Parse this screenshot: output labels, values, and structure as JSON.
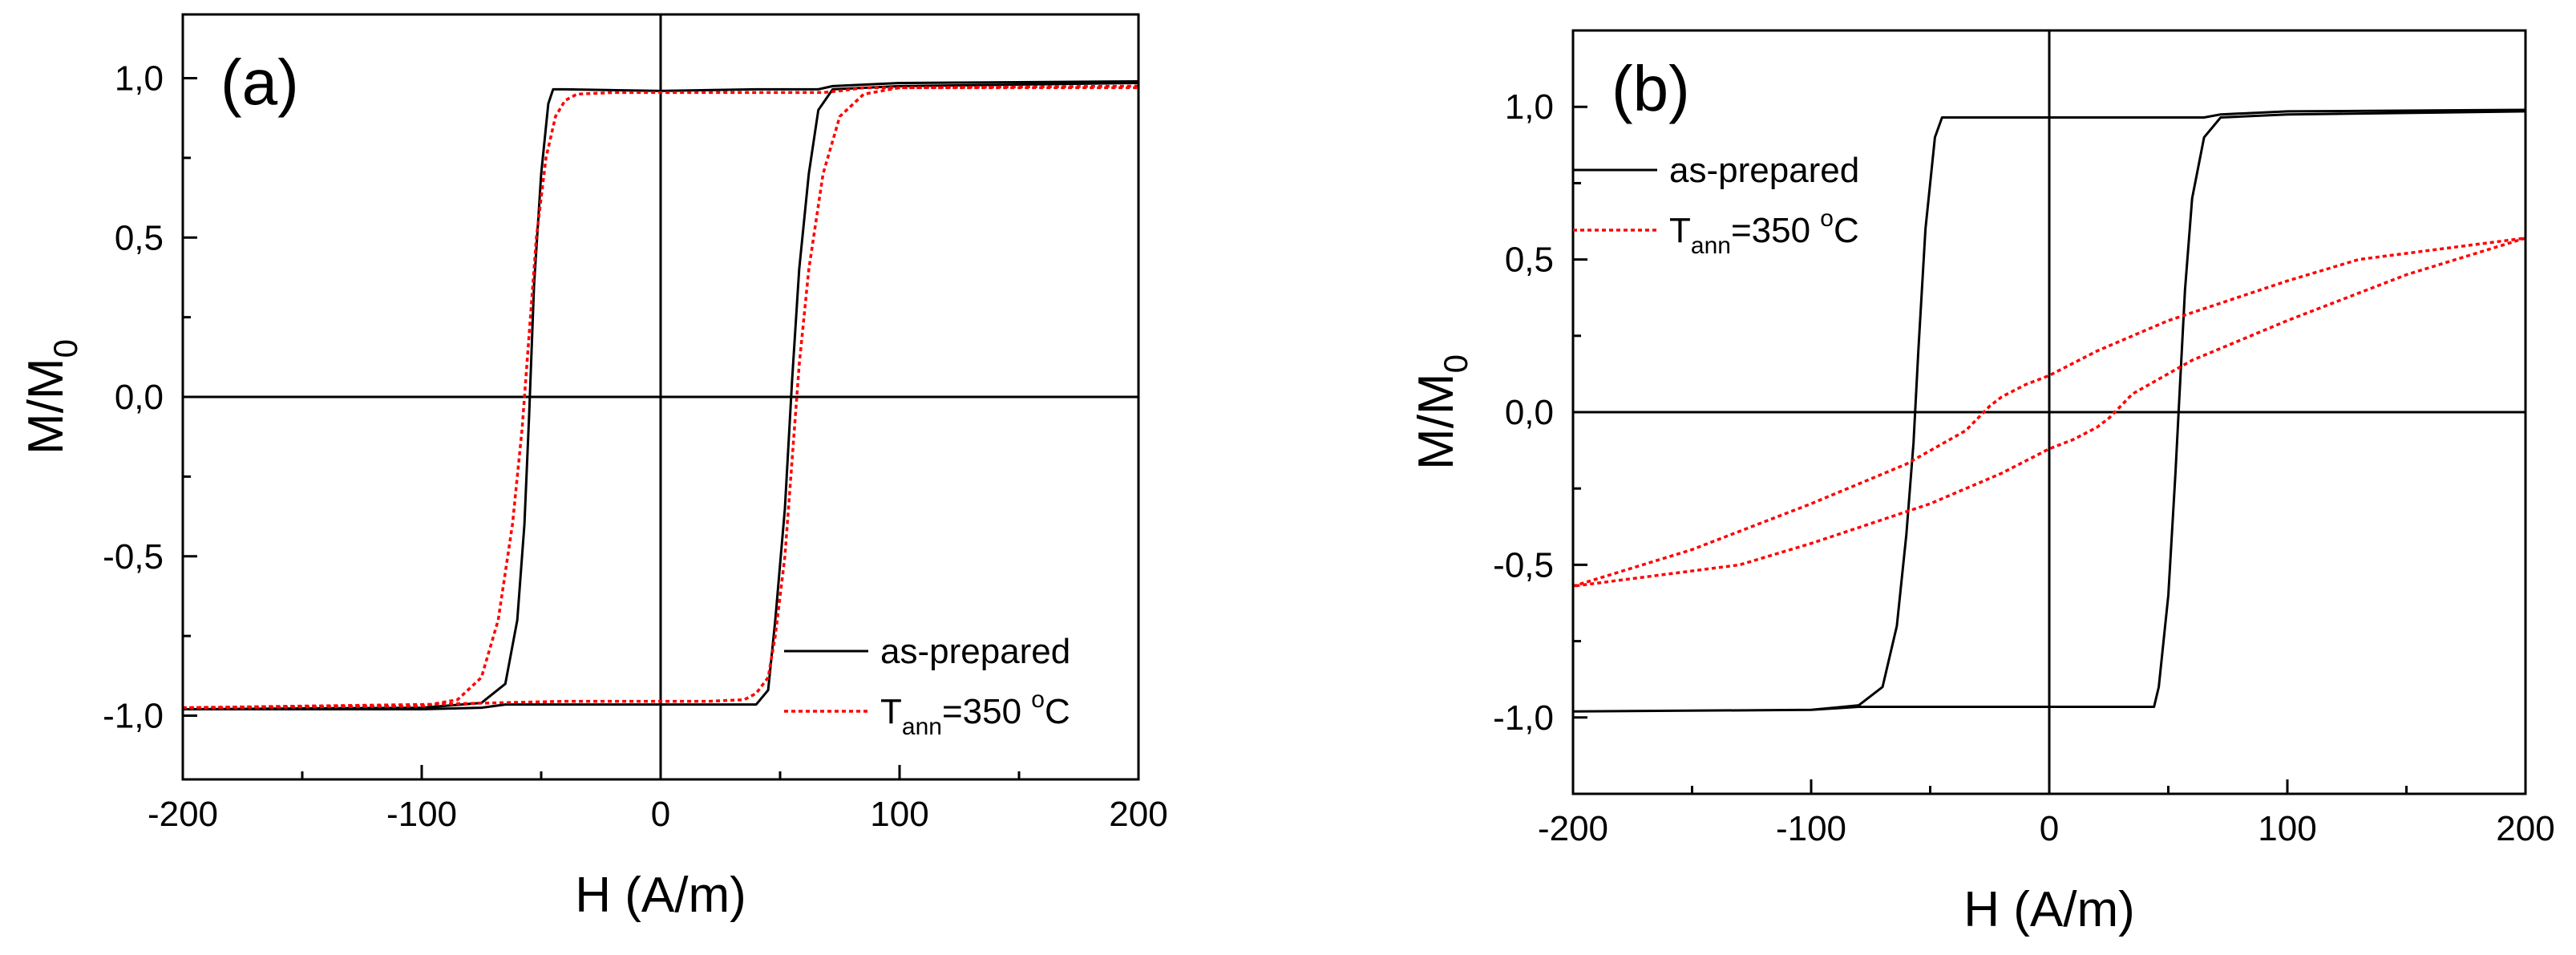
{
  "chart_data": [
    {
      "type": "line",
      "panel_label": "(a)",
      "xlabel": "H (A/m)",
      "ylabel_main": "M/M",
      "ylabel_sub": "0",
      "xlim": [
        -200,
        200
      ],
      "ylim": [
        -1.2,
        1.2
      ],
      "x_ticks": [
        -200,
        -100,
        0,
        100,
        200
      ],
      "x_tick_labels": [
        "-200",
        "-100",
        "0",
        "100",
        "200"
      ],
      "y_ticks": [
        -1.0,
        -0.5,
        0.0,
        0.5,
        1.0
      ],
      "y_tick_labels": [
        "-1,0",
        "-0,5",
        "0,0",
        "0,5",
        "1,0"
      ],
      "grid": false,
      "zero_lines": true,
      "legend": {
        "position": "bottom-right",
        "entries": [
          {
            "label": "as-prepared",
            "style": "solid",
            "color": "#000000"
          },
          {
            "label_main": "T",
            "label_sub": "ann",
            "label_rest": "=350 ",
            "label_sup": "o",
            "label_unit": "C",
            "style": "dotted",
            "color": "#ff0000"
          }
        ]
      },
      "series": [
        {
          "name": "as-prepared",
          "color": "#000000",
          "style": "solid",
          "x": [
            -200,
            -100,
            -75,
            -65,
            -60,
            -57,
            -55,
            -53,
            -50,
            -47,
            -45,
            -40,
            0,
            40,
            45,
            48,
            52,
            55,
            58,
            62,
            66,
            72,
            100,
            200,
            200,
            100,
            72,
            66,
            62,
            58,
            55,
            52,
            48,
            45,
            40,
            0,
            -40,
            -45,
            -47,
            -50,
            -53,
            -55,
            -57,
            -60,
            -65,
            -75,
            -100,
            -200
          ],
          "y": [
            -0.98,
            -0.975,
            -0.96,
            -0.9,
            -0.7,
            -0.4,
            -0.05,
            0.35,
            0.7,
            0.92,
            0.965,
            0.965,
            0.96,
            0.965,
            0.965,
            0.965,
            0.965,
            0.965,
            0.965,
            0.965,
            0.965,
            0.975,
            0.985,
            0.99,
            0.985,
            0.975,
            0.965,
            0.9,
            0.7,
            0.4,
            0.05,
            -0.35,
            -0.7,
            -0.92,
            -0.965,
            -0.965,
            -0.965,
            -0.965,
            -0.965,
            -0.965,
            -0.965,
            -0.965,
            -0.965,
            -0.965,
            -0.965,
            -0.975,
            -0.98,
            -0.98
          ]
        },
        {
          "name": "T_ann=350 °C",
          "color": "#ff0000",
          "style": "dotted",
          "x": [
            -200,
            -100,
            -85,
            -75,
            -68,
            -62,
            -58,
            -55,
            -52,
            -48,
            -44,
            -40,
            -35,
            -20,
            0,
            40,
            45,
            48,
            52,
            55,
            58,
            62,
            68,
            75,
            85,
            100,
            200,
            200,
            100,
            85,
            75,
            68,
            62,
            58,
            55,
            52,
            48,
            45,
            40,
            35,
            20,
            0,
            -40,
            -100,
            -200
          ],
          "y": [
            -0.975,
            -0.97,
            -0.95,
            -0.88,
            -0.7,
            -0.4,
            -0.1,
            0.2,
            0.5,
            0.75,
            0.88,
            0.93,
            0.95,
            0.955,
            0.955,
            0.955,
            0.955,
            0.955,
            0.955,
            0.955,
            0.955,
            0.955,
            0.955,
            0.96,
            0.97,
            0.97,
            0.975,
            0.97,
            0.97,
            0.95,
            0.88,
            0.7,
            0.4,
            0.1,
            -0.2,
            -0.5,
            -0.75,
            -0.88,
            -0.93,
            -0.95,
            -0.955,
            -0.955,
            -0.955,
            -0.965,
            -0.975
          ]
        }
      ]
    },
    {
      "type": "line",
      "panel_label": "(b)",
      "xlabel": "H (A/m)",
      "ylabel_main": "M/M",
      "ylabel_sub": "0",
      "xlim": [
        -200,
        200
      ],
      "ylim": [
        -1.25,
        1.25
      ],
      "x_ticks": [
        -200,
        -100,
        0,
        100,
        200
      ],
      "x_tick_labels": [
        "-200",
        "-100",
        "0",
        "100",
        "200"
      ],
      "y_ticks": [
        -1.0,
        -0.5,
        0.0,
        0.5,
        1.0
      ],
      "y_tick_labels": [
        "-1,0",
        "-0,5",
        "0,0",
        "0,5",
        "1,0"
      ],
      "grid": false,
      "zero_lines": true,
      "legend": {
        "position": "top-left",
        "entries": [
          {
            "label": "as-prepared",
            "style": "solid",
            "color": "#000000"
          },
          {
            "label_main": "T",
            "label_sub": "ann",
            "label_rest": "=350 ",
            "label_sup": "o",
            "label_unit": "C",
            "style": "dotted",
            "color": "#ff0000"
          }
        ]
      },
      "series": [
        {
          "name": "as-prepared",
          "color": "#000000",
          "style": "solid",
          "x": [
            -200,
            -100,
            -80,
            -70,
            -64,
            -60,
            -57,
            -55,
            -52,
            -48,
            -45,
            0,
            44,
            46,
            50,
            53,
            55,
            57,
            60,
            65,
            72,
            100,
            200,
            200,
            100,
            72,
            65,
            60,
            57,
            55,
            53,
            50,
            46,
            44,
            0,
            -45,
            -48,
            -52,
            -55,
            -57,
            -60,
            -64,
            -70,
            -80,
            -100,
            -200
          ],
          "y": [
            -0.98,
            -0.975,
            -0.96,
            -0.9,
            -0.7,
            -0.4,
            -0.1,
            0.2,
            0.6,
            0.9,
            0.965,
            0.965,
            0.965,
            0.965,
            0.965,
            0.965,
            0.965,
            0.965,
            0.965,
            0.965,
            0.975,
            0.985,
            0.99,
            0.985,
            0.975,
            0.965,
            0.9,
            0.7,
            0.4,
            0.1,
            -0.2,
            -0.6,
            -0.9,
            -0.965,
            -0.965,
            -0.965,
            -0.965,
            -0.965,
            -0.965,
            -0.965,
            -0.965,
            -0.965,
            -0.965,
            -0.965,
            -0.975,
            -0.98
          ]
        },
        {
          "name": "T_ann=350 °C",
          "color": "#ff0000",
          "style": "dotted",
          "x": [
            -200,
            -150,
            -100,
            -60,
            -35,
            -25,
            -20,
            -10,
            0,
            20,
            50,
            100,
            130,
            200,
            200,
            150,
            100,
            60,
            35,
            25,
            20,
            10,
            0,
            -20,
            -50,
            -100,
            -130,
            -200
          ],
          "y": [
            -0.57,
            -0.45,
            -0.3,
            -0.17,
            -0.06,
            0.02,
            0.05,
            0.09,
            0.12,
            0.2,
            0.3,
            0.43,
            0.5,
            0.57,
            0.57,
            0.45,
            0.3,
            0.17,
            0.06,
            -0.02,
            -0.05,
            -0.09,
            -0.12,
            -0.2,
            -0.3,
            -0.43,
            -0.5,
            -0.57
          ]
        }
      ]
    }
  ]
}
